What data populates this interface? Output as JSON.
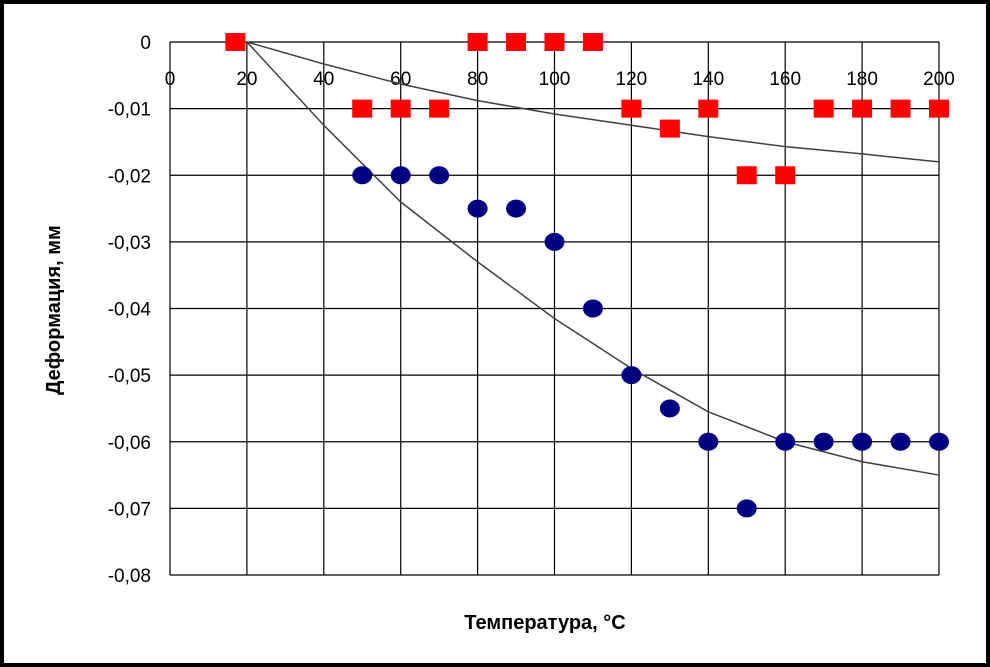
{
  "chart_data": {
    "type": "scatter",
    "title": "",
    "xlabel": "Температура, °С",
    "ylabel": "Деформация, мм",
    "xlim": [
      0,
      200
    ],
    "ylim": [
      -0.08,
      0
    ],
    "x_ticks": [
      "0",
      "20",
      "40",
      "60",
      "80",
      "100",
      "120",
      "140",
      "160",
      "180",
      "200"
    ],
    "y_ticks": [
      "0",
      "-0,01",
      "-0,02",
      "-0,03",
      "-0,04",
      "-0,05",
      "-0,06",
      "-0,07",
      "-0,08"
    ],
    "grid": true,
    "legend": "none",
    "series": [
      {
        "marker": "square",
        "color": "#ff0000",
        "x": [
          17,
          50,
          60,
          70,
          80,
          90,
          100,
          110,
          120,
          130,
          140,
          150,
          160,
          170,
          180,
          190,
          200
        ],
        "y": [
          0,
          -0.01,
          -0.01,
          -0.01,
          0,
          0,
          0,
          0,
          -0.01,
          -0.013,
          -0.01,
          -0.02,
          -0.02,
          -0.01,
          -0.01,
          -0.01,
          -0.01
        ]
      },
      {
        "marker": "circle",
        "color": "#000080",
        "x": [
          50,
          60,
          70,
          80,
          90,
          100,
          110,
          120,
          130,
          140,
          150,
          160,
          170,
          180,
          190,
          200
        ],
        "y": [
          -0.02,
          -0.02,
          -0.02,
          -0.025,
          -0.025,
          -0.03,
          -0.04,
          -0.05,
          -0.055,
          -0.06,
          -0.07,
          -0.06,
          -0.06,
          -0.06,
          -0.06,
          -0.06
        ]
      }
    ],
    "trendlines": [
      {
        "color": "#404040",
        "x": [
          20,
          40,
          60,
          80,
          100,
          120,
          140,
          160,
          180,
          200
        ],
        "y": [
          0,
          -0.0033,
          -0.0063,
          -0.0088,
          -0.0108,
          -0.0125,
          -0.0142,
          -0.0157,
          -0.0168,
          -0.018
        ]
      },
      {
        "color": "#404040",
        "x": [
          20,
          40,
          60,
          80,
          100,
          120,
          140,
          160,
          180,
          200
        ],
        "y": [
          0,
          -0.0125,
          -0.024,
          -0.033,
          -0.0415,
          -0.049,
          -0.0555,
          -0.06,
          -0.063,
          -0.065
        ]
      }
    ]
  }
}
